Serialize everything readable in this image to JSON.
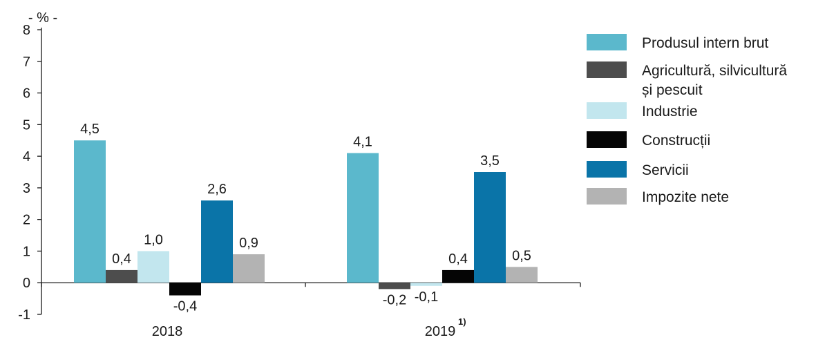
{
  "chart_data": {
    "type": "bar",
    "unit_label": "- % -",
    "categories": [
      "2018",
      "2019"
    ],
    "category_footnotes": [
      "",
      "1)"
    ],
    "ylim": [
      -1,
      8
    ],
    "yticks": [
      -1,
      0,
      1,
      2,
      3,
      4,
      5,
      6,
      7,
      8
    ],
    "grid": false,
    "legend_position": "right",
    "series": [
      {
        "name": "Produsul intern brut",
        "name_lines": [
          "Produsul intern brut"
        ],
        "color": "#5bb8cc",
        "values": [
          4.5,
          4.1
        ],
        "labels": [
          "4,5",
          "4,1"
        ]
      },
      {
        "name": "Agricultură, silvicultură și pescuit",
        "name_lines": [
          "Agricultură, silvicultură",
          "și pescuit"
        ],
        "color": "#4d4d4d",
        "values": [
          0.4,
          -0.2
        ],
        "labels": [
          "0,4",
          "-0,2"
        ]
      },
      {
        "name": "Industrie",
        "name_lines": [
          "Industrie"
        ],
        "color": "#c2e6ee",
        "values": [
          1.0,
          -0.1
        ],
        "labels": [
          "1,0",
          "-0,1"
        ]
      },
      {
        "name": "Construcții",
        "name_lines": [
          "Construcții"
        ],
        "color": "#050505",
        "values": [
          -0.4,
          0.4
        ],
        "labels": [
          "-0,4",
          "0,4"
        ]
      },
      {
        "name": "Servicii",
        "name_lines": [
          "Servicii"
        ],
        "color": "#0a74a8",
        "values": [
          2.6,
          3.5
        ],
        "labels": [
          "2,6",
          "3,5"
        ]
      },
      {
        "name": "Impozite nete",
        "name_lines": [
          "Impozite nete"
        ],
        "color": "#b3b3b3",
        "values": [
          0.9,
          0.5
        ],
        "labels": [
          "0,9",
          "0,5"
        ]
      }
    ]
  }
}
